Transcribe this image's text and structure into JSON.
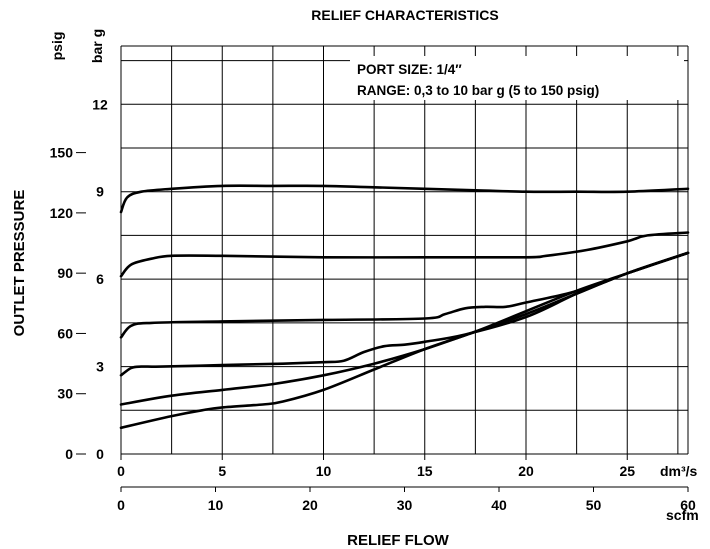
{
  "chart_data": {
    "type": "line",
    "title": "RELIEF CHARACTERISTICS",
    "xlabel": "RELIEF FLOW",
    "ylabel": "OUTLET PRESSURE",
    "x_unit_primary": "dm³/s",
    "x_unit_secondary": "scfm",
    "y_unit_primary": "bar g",
    "y_unit_secondary": "psig",
    "xlim": [
      0,
      28
    ],
    "ylim": [
      0,
      14
    ],
    "grid": true,
    "x_ticks_primary": [
      "0",
      "5",
      "10",
      "15",
      "20",
      "25"
    ],
    "x_ticks_secondary": [
      "0",
      "10",
      "20",
      "30",
      "40",
      "50",
      "60"
    ],
    "y_ticks_primary": [
      "0",
      "3",
      "6",
      "9",
      "12"
    ],
    "y_ticks_secondary": [
      "0",
      "30",
      "60",
      "90",
      "120",
      "150"
    ],
    "annotations": [
      "PORT SIZE: 1/4″",
      "RANGE: 0,3 to 10 bar g (5 to 150 psig)"
    ],
    "series": [
      {
        "x": [
          0,
          0.3,
          1,
          2.5,
          5,
          7.5,
          10,
          12.5,
          15,
          17.5,
          20,
          22.5,
          25,
          28
        ],
        "y": [
          8.3,
          8.8,
          9.0,
          9.1,
          9.2,
          9.2,
          9.2,
          9.15,
          9.1,
          9.05,
          9.0,
          9.0,
          9.0,
          9.1
        ]
      },
      {
        "x": [
          0,
          0.5,
          1.5,
          2.5,
          5,
          10,
          15,
          20,
          21,
          23,
          25,
          26,
          28
        ],
        "y": [
          6.1,
          6.5,
          6.7,
          6.8,
          6.8,
          6.75,
          6.75,
          6.75,
          6.8,
          7.0,
          7.3,
          7.5,
          7.6
        ]
      },
      {
        "x": [
          0,
          0.5,
          1.5,
          5,
          10,
          15,
          16,
          17,
          18,
          19,
          20,
          22,
          23.5,
          25,
          28
        ],
        "y": [
          4.0,
          4.4,
          4.5,
          4.55,
          4.6,
          4.65,
          4.8,
          5.0,
          5.05,
          5.05,
          5.2,
          5.5,
          5.8,
          6.2,
          6.9
        ]
      },
      {
        "x": [
          0,
          0.5,
          1,
          2,
          5,
          8,
          10,
          11,
          12,
          13,
          14,
          15,
          17,
          20,
          22.5,
          25,
          28
        ],
        "y": [
          2.7,
          2.95,
          3.0,
          3.0,
          3.05,
          3.1,
          3.15,
          3.2,
          3.5,
          3.7,
          3.75,
          3.85,
          4.1,
          4.7,
          5.5,
          6.2,
          6.9
        ]
      },
      {
        "x": [
          0,
          2.5,
          5,
          7.5,
          10,
          12.5,
          15,
          17.5,
          20,
          22.5,
          25,
          28
        ],
        "y": [
          1.7,
          2.0,
          2.2,
          2.4,
          2.7,
          3.1,
          3.6,
          4.2,
          4.8,
          5.5,
          6.2,
          6.9
        ]
      },
      {
        "x": [
          0,
          2.5,
          4,
          5,
          7,
          8,
          10,
          12.5,
          15,
          17.5,
          20,
          22.5,
          25,
          28
        ],
        "y": [
          0.9,
          1.3,
          1.5,
          1.6,
          1.7,
          1.8,
          2.2,
          2.9,
          3.6,
          4.2,
          4.9,
          5.6,
          6.2,
          6.9
        ]
      }
    ]
  }
}
